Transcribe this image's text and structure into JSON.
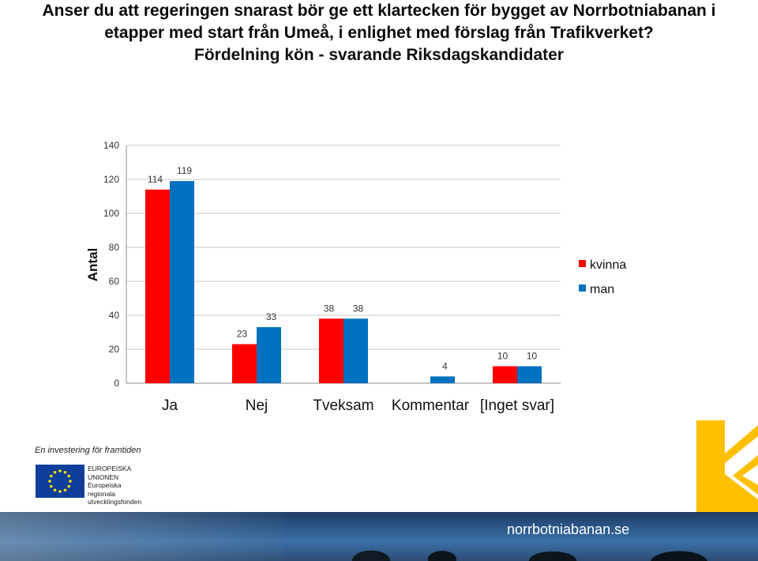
{
  "title": {
    "line1": "Anser du att regeringen snarast bör ge ett klartecken för bygget av Norrbotniabanan i",
    "line2": "etapper med start från Umeå, i enlighet med förslag från Trafikverket?",
    "subtitle": "Fördelning kön - svarande Riksdagskandidater"
  },
  "chart_data": {
    "type": "bar",
    "categories": [
      "Ja",
      "Nej",
      "Tveksam",
      "Kommentar",
      "[Inget svar]"
    ],
    "series": [
      {
        "name": "kvinna",
        "values": [
          114,
          23,
          38,
          0,
          10
        ],
        "labels": [
          "114",
          "23",
          "38",
          "",
          "10"
        ],
        "color": "#ff0000"
      },
      {
        "name": "man",
        "values": [
          119,
          33,
          38,
          4,
          10
        ],
        "labels": [
          "119",
          "33",
          "38",
          "4",
          "10"
        ],
        "color": "#0070c0"
      }
    ],
    "ylabel": "Antal",
    "xlabel": "",
    "ylim": [
      0,
      140
    ],
    "yticks": [
      0,
      20,
      40,
      60,
      80,
      100,
      120,
      140
    ],
    "grid": true,
    "legend_position": "right"
  },
  "footer": {
    "tagline": "En investering för framtiden",
    "eu_lines": [
      "EUROPEISKA",
      "UNIONEN",
      "Europeiska",
      "regionala",
      "utvecklingsfonden"
    ],
    "site": "norrbotniabanan.se"
  }
}
